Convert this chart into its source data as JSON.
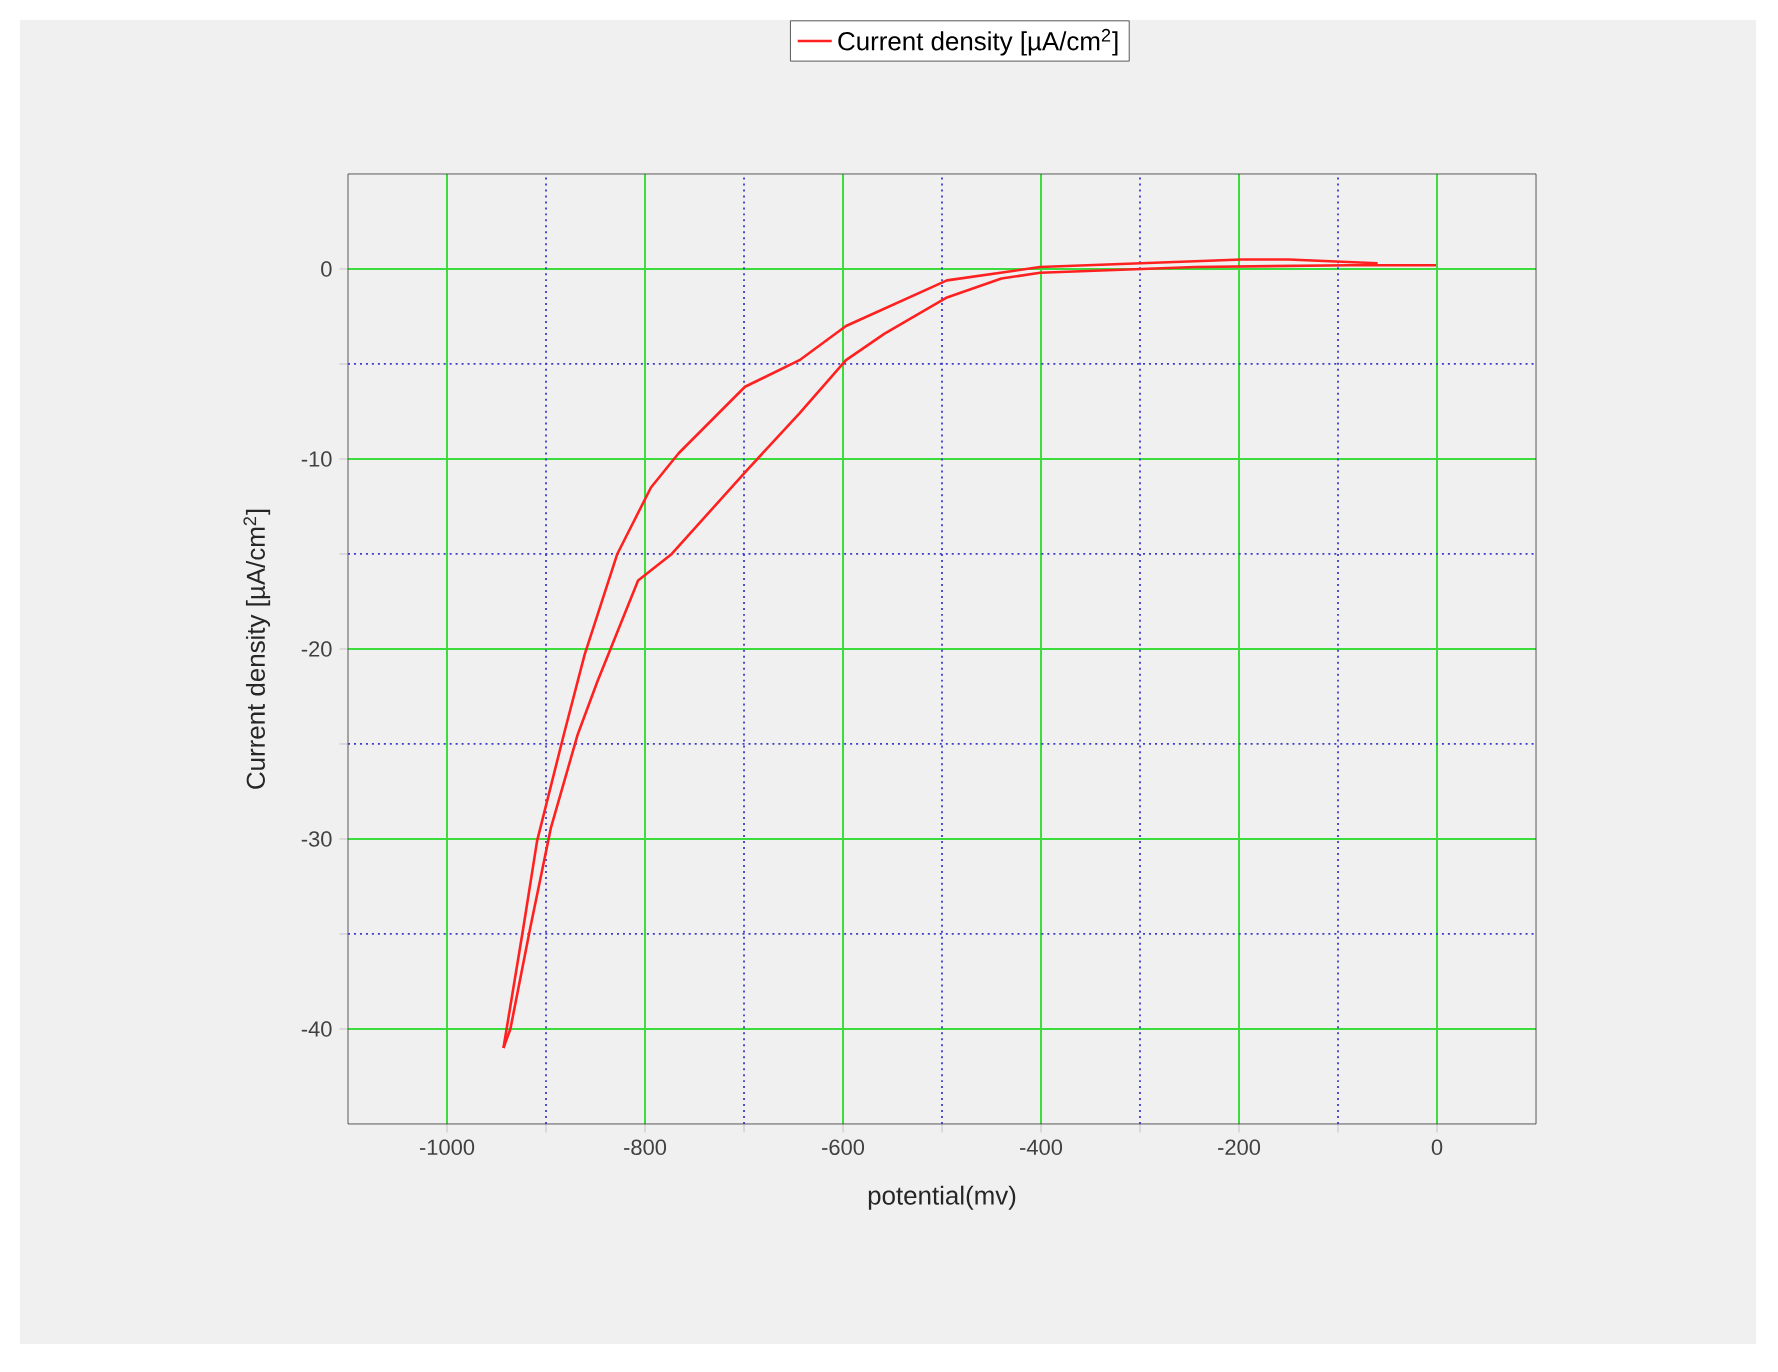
{
  "chart_data": {
    "type": "line",
    "xlabel": "potential(mv)",
    "ylabel": "Current density [µA/cm$^{2}$]",
    "legend": "top",
    "grid": true,
    "xlim": [
      -1100,
      100
    ],
    "ylim": [
      -45,
      5
    ],
    "xticks": [
      -1000,
      {
        "value": -900,
        "label": null
      },
      -800,
      {
        "value": -700,
        "label": null
      },
      -600,
      {
        "value": -500,
        "label": null
      },
      -400,
      {
        "value": -300,
        "label": null
      },
      -200,
      {
        "value": -100,
        "label": null
      },
      0
    ],
    "yticks": [
      -40,
      {
        "value": -35,
        "label": null
      },
      -30,
      {
        "value": -25,
        "label": null
      },
      -20,
      {
        "value": -15,
        "label": null
      },
      -10,
      {
        "value": -5,
        "label": null
      },
      0
    ],
    "series": [
      {
        "name": "Current density [µA/cm$^{2}$]",
        "color": "#ff2020",
        "x": [
          -1,
          -88,
          -244,
          -401,
          -440,
          -495,
          -558,
          -597,
          -644,
          -699,
          -773,
          -807,
          -848,
          -868,
          -895,
          -916,
          -936,
          -943
        ],
        "values": [
          0.2,
          0.2,
          0.1,
          -0.2,
          -0.5,
          -1.5,
          -3.4,
          -4.8,
          -7.6,
          -10.7,
          -15.0,
          -16.4,
          -21.7,
          -24.5,
          -29.4,
          -34.7,
          -40.0,
          -41.0
        ]
      },
      {
        "color": "#ff2020",
        "x": [
          -943,
          -923,
          -909,
          -882,
          -861,
          -828,
          -794,
          -766,
          -699,
          -644,
          -597,
          -495,
          -401,
          -197,
          -150,
          -60
        ],
        "values": [
          -41.0,
          -34.7,
          -30.1,
          -24.5,
          -20.3,
          -15.0,
          -11.5,
          -9.7,
          -6.2,
          -4.8,
          -3.0,
          -0.6,
          0.1,
          0.5,
          0.5,
          0.3
        ]
      }
    ]
  }
}
